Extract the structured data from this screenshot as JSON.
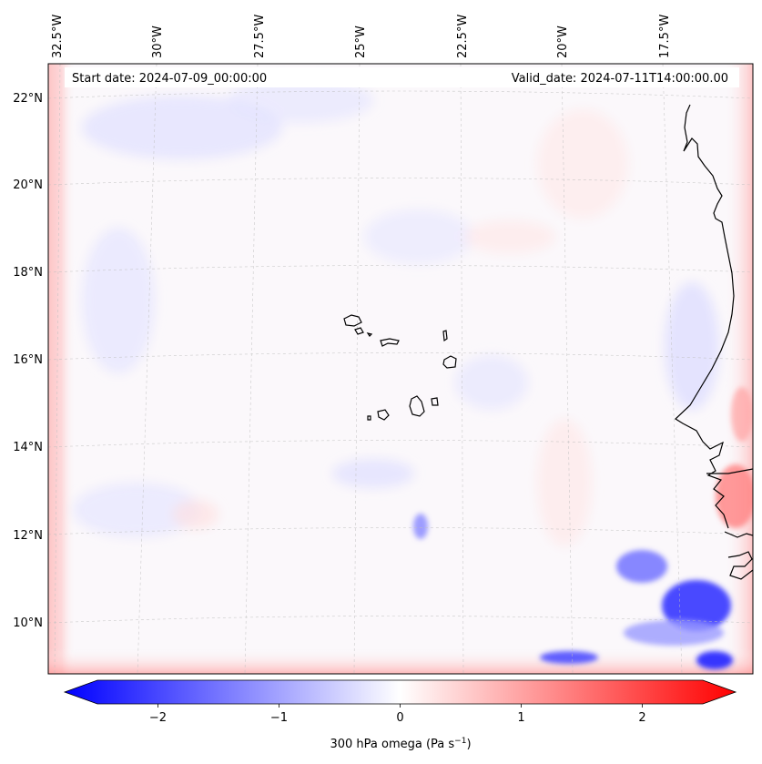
{
  "map": {
    "projection": "lambert-conformal",
    "variable": "300 hPa omega",
    "annotations": {
      "start_date": "Start date: 2024-07-09_00:00:00",
      "valid_date": "Valid_date: 2024-07-11T14:00:00.00"
    },
    "lon_labels": [
      "32.5°W",
      "30°W",
      "27.5°W",
      "25°W",
      "22.5°W",
      "20°W",
      "17.5°W"
    ],
    "lat_labels": [
      "22°N",
      "20°N",
      "18°N",
      "16°N",
      "14°N",
      "12°N",
      "10°N"
    ],
    "lon_values": [
      -32.5,
      -30,
      -27.5,
      -25,
      -22.5,
      -20,
      -17.5
    ],
    "lat_values": [
      22,
      20,
      18,
      16,
      14,
      12,
      10
    ],
    "extent": {
      "lon_min": -33.0,
      "lon_max": -15.8,
      "lat_min": 8.9,
      "lat_max": 22.7
    },
    "features": [
      "Cape Verde islands",
      "West African coastline"
    ]
  },
  "colorbar": {
    "cmap": "bwr",
    "vmin": -2.5,
    "vmax": 2.5,
    "extend": "both",
    "ticks": [
      -2,
      -1,
      0,
      1,
      2
    ],
    "tick_labels": [
      "−2",
      "−1",
      "0",
      "1",
      "2"
    ],
    "label_prefix": "300 hPa omega (Pa s",
    "label_exp": "−1",
    "label_suffix": ")"
  },
  "colors": {
    "negative": "#0000ff",
    "zero": "#ffffff",
    "positive": "#ff0000",
    "coast": "#000000"
  }
}
